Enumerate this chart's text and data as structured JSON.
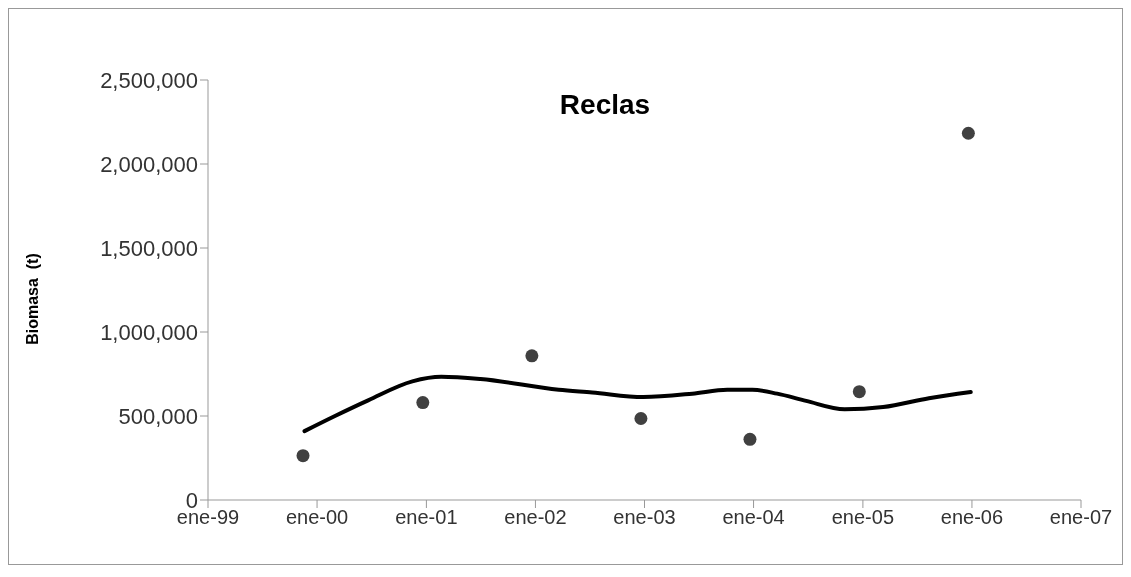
{
  "chart_data": {
    "type": "scatter",
    "title": "Reclas",
    "ylabel": "Biomasa  (t)",
    "xlim": [
      "1999-01-01",
      "2007-01-01"
    ],
    "xticks": [
      {
        "value": "1999-01-01",
        "label": "ene-99"
      },
      {
        "value": "2000-01-01",
        "label": "ene-00"
      },
      {
        "value": "2001-01-01",
        "label": "ene-01"
      },
      {
        "value": "2002-01-01",
        "label": "ene-02"
      },
      {
        "value": "2003-01-01",
        "label": "ene-03"
      },
      {
        "value": "2004-01-01",
        "label": "ene-04"
      },
      {
        "value": "2005-01-01",
        "label": "ene-05"
      },
      {
        "value": "2006-01-01",
        "label": "ene-06"
      },
      {
        "value": "2007-01-01",
        "label": "ene-07"
      }
    ],
    "ylim": [
      0,
      2500000
    ],
    "yticks": [
      {
        "value": 0,
        "label": "0"
      },
      {
        "value": 500000,
        "label": "500,000"
      },
      {
        "value": 1000000,
        "label": "1,000,000"
      },
      {
        "value": 1500000,
        "label": "1,500,000"
      },
      {
        "value": 2000000,
        "label": "2,000,000"
      },
      {
        "value": 2500000,
        "label": "2,500,000"
      }
    ],
    "series": [
      {
        "marker": "circle",
        "color": "#404040",
        "x": [
          "1999-11-15",
          "2000-12-20",
          "2001-12-20",
          "2002-12-20",
          "2003-12-20",
          "2004-12-20",
          "2005-12-20"
        ],
        "values": [
          264000,
          580000,
          858000,
          485000,
          361000,
          645000,
          2183000
        ]
      },
      {
        "type": "line",
        "marker": "none",
        "line_style": "solid",
        "color": "#000000",
        "x": [
          "1999-11-20",
          "2000-03-01",
          "2000-06-20",
          "2000-11-15",
          "2001-02-20",
          "2001-07-01",
          "2002-03-20",
          "2002-07-10",
          "2002-12-28",
          "2003-06-10",
          "2003-10-05",
          "2003-12-28",
          "2004-03-20",
          "2004-06-25",
          "2004-11-01",
          "2005-03-10",
          "2005-08-10",
          "2005-12-28"
        ],
        "values": [
          410000,
          500000,
          593000,
          706000,
          733000,
          720000,
          656000,
          640000,
          613000,
          633000,
          656000,
          656000,
          633000,
          590000,
          540000,
          553000,
          606000,
          643000
        ]
      }
    ]
  }
}
